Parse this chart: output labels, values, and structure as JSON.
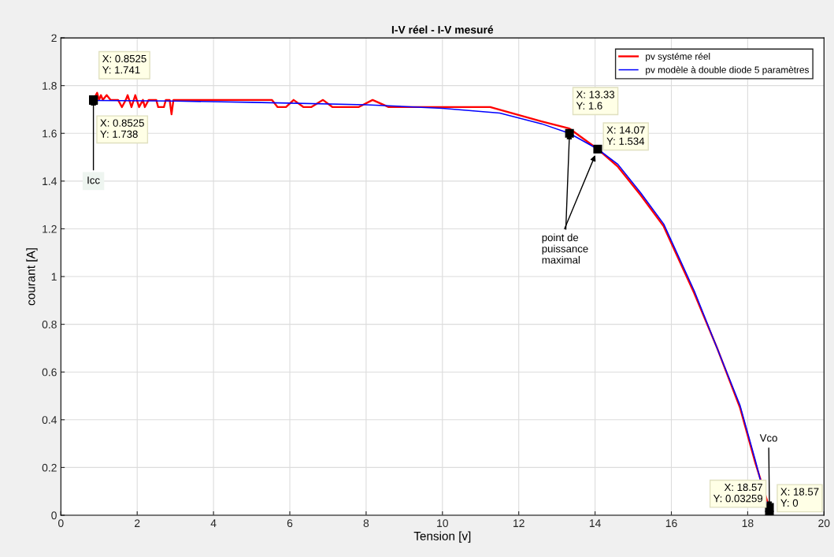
{
  "chart_data": {
    "type": "line",
    "title": "I-V réel - I-V mesuré",
    "xlabel": "Tension [v]",
    "ylabel": "courant [A]",
    "series": [
      {
        "name": "pv systéme réel",
        "color": "#ff0000",
        "x": [
          0.8525,
          0.95,
          1.0,
          1.05,
          1.1,
          1.2,
          1.3,
          1.5,
          1.6,
          1.7,
          1.75,
          1.85,
          1.95,
          2.05,
          2.15,
          2.2,
          2.3,
          2.5,
          2.55,
          2.7,
          2.75,
          2.85,
          2.9,
          2.95,
          5.53,
          5.68,
          5.9,
          6.1,
          6.36,
          6.56,
          6.87,
          7.12,
          7.8,
          8.17,
          8.59,
          11.25,
          12.6,
          13.33,
          14.07,
          14.6,
          15.2,
          15.8,
          16.6,
          17.2,
          17.8,
          18.2,
          18.57
        ],
        "values": [
          1.741,
          1.77,
          1.74,
          1.76,
          1.74,
          1.76,
          1.74,
          1.74,
          1.71,
          1.74,
          1.76,
          1.71,
          1.76,
          1.71,
          1.74,
          1.71,
          1.74,
          1.74,
          1.71,
          1.71,
          1.74,
          1.74,
          1.68,
          1.74,
          1.74,
          1.71,
          1.71,
          1.74,
          1.71,
          1.71,
          1.74,
          1.71,
          1.71,
          1.74,
          1.71,
          1.71,
          1.65,
          1.62,
          1.534,
          1.46,
          1.34,
          1.21,
          0.93,
          0.7,
          0.45,
          0.22,
          0.03
        ]
      },
      {
        "name": "pv modèle à double diode 5 paramètres",
        "color": "#0000ff",
        "x": [
          0.8525,
          3,
          5,
          8,
          10,
          11.5,
          12.6,
          13.33,
          14.07,
          14.6,
          15.2,
          15.8,
          16.6,
          17.2,
          17.8,
          18.2,
          18.57
        ],
        "values": [
          1.738,
          1.735,
          1.73,
          1.72,
          1.705,
          1.685,
          1.64,
          1.6,
          1.534,
          1.47,
          1.35,
          1.22,
          0.94,
          0.7,
          0.46,
          0.23,
          0
        ]
      }
    ],
    "xlim": [
      0,
      20
    ],
    "xticks": [
      0,
      2,
      4,
      6,
      8,
      10,
      12,
      14,
      16,
      18,
      20
    ],
    "ylim": [
      0,
      2
    ],
    "yticks": [
      0,
      0.2,
      0.4,
      0.6,
      0.8,
      1,
      1.2,
      1.4,
      1.6,
      1.8,
      2
    ],
    "grid": true,
    "legend": "top right",
    "annotations": [
      {
        "text": "X: 0.8525\nY: 1.741",
        "x": 0.8525,
        "y": 1.741
      },
      {
        "text": "X: 0.8525\nY: 1.738",
        "x": 0.8525,
        "y": 1.738
      },
      {
        "text": "X: 13.33\nY: 1.6",
        "x": 13.33,
        "y": 1.6
      },
      {
        "text": "X: 14.07\nY: 1.534",
        "x": 14.07,
        "y": 1.534
      },
      {
        "text": "X: 18.57\nY: 0.03259",
        "x": 18.57,
        "y": 0.03259
      },
      {
        "text": "X: 18.57\nY: 0",
        "x": 18.57,
        "y": 0
      },
      {
        "text": "Icc",
        "x": 0.8525,
        "y": 1.741
      },
      {
        "text": "point de\npuissance\nmaximal",
        "x": 13.33,
        "y": 1.6
      },
      {
        "text": "Vco",
        "x": 18.57,
        "y": 0.03259
      }
    ]
  }
}
